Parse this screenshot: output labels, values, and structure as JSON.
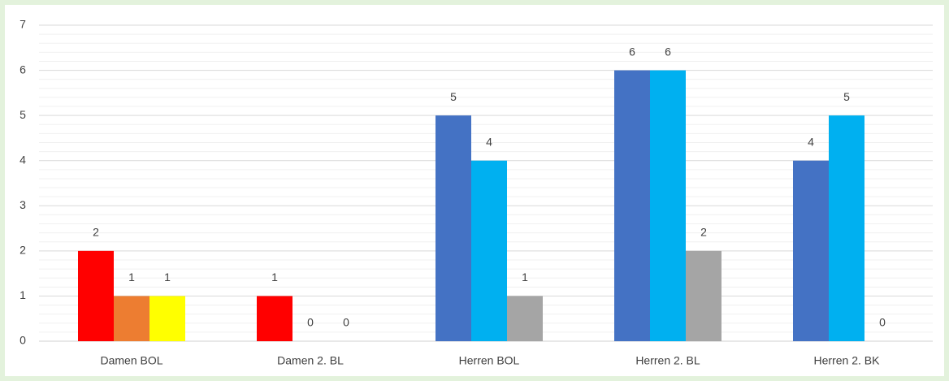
{
  "chart_data": {
    "type": "bar",
    "categories": [
      "Damen BOL",
      "Damen 2. BL",
      "Herren BOL",
      "Herren 2. BL",
      "Herren 2. BK"
    ],
    "series": [
      {
        "values": [
          2,
          1,
          5,
          6,
          4
        ],
        "colors": [
          "#ff0000",
          "#ff0000",
          "#4472c4",
          "#4472c4",
          "#4472c4"
        ]
      },
      {
        "values": [
          1,
          0,
          4,
          6,
          5
        ],
        "colors": [
          "#ed7d31",
          "#ed7d31",
          "#00b0f0",
          "#00b0f0",
          "#00b0f0"
        ]
      },
      {
        "values": [
          1,
          0,
          1,
          2,
          0
        ],
        "colors": [
          "#ffff00",
          "#ffff00",
          "#a5a5a5",
          "#a5a5a5",
          "#a5a5a5"
        ]
      }
    ],
    "ylim": [
      0,
      7
    ],
    "yticks": [
      0,
      1,
      2,
      3,
      4,
      5,
      6,
      7
    ],
    "grid": true,
    "minor_grid_divisions": 5,
    "data_labels": true
  }
}
